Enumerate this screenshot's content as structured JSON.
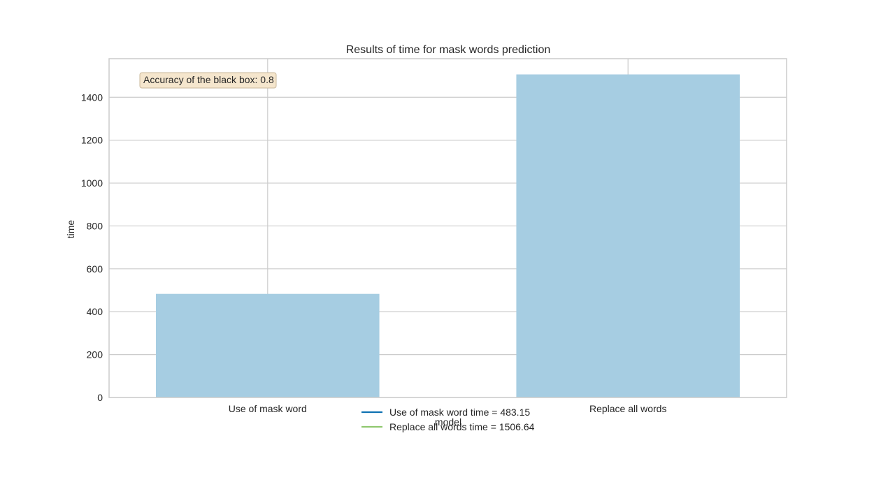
{
  "chart_data": {
    "type": "bar",
    "title": "Results of time for mask words prediction",
    "xlabel": "model",
    "ylabel": "time",
    "categories": [
      "Use of mask word",
      "Replace all words"
    ],
    "values": [
      483.15,
      1506.64
    ],
    "ylim": [
      0,
      1580
    ],
    "yticks": [
      0,
      200,
      400,
      600,
      800,
      1000,
      1200,
      1400
    ],
    "grid": true,
    "bar_color": "#a6cde2",
    "annotation": {
      "text": "Accuracy of the black box: 0.8",
      "position": "top-left",
      "bg_color": "#f5e6cd",
      "border_color": "#c9b79a"
    },
    "legend": {
      "position": "bottom-center",
      "entries": [
        {
          "label": "Use of mask word time = 483.15",
          "color": "#0f72b2"
        },
        {
          "label": "Replace all words time = 1506.64",
          "color": "#8fc86f"
        }
      ]
    }
  }
}
